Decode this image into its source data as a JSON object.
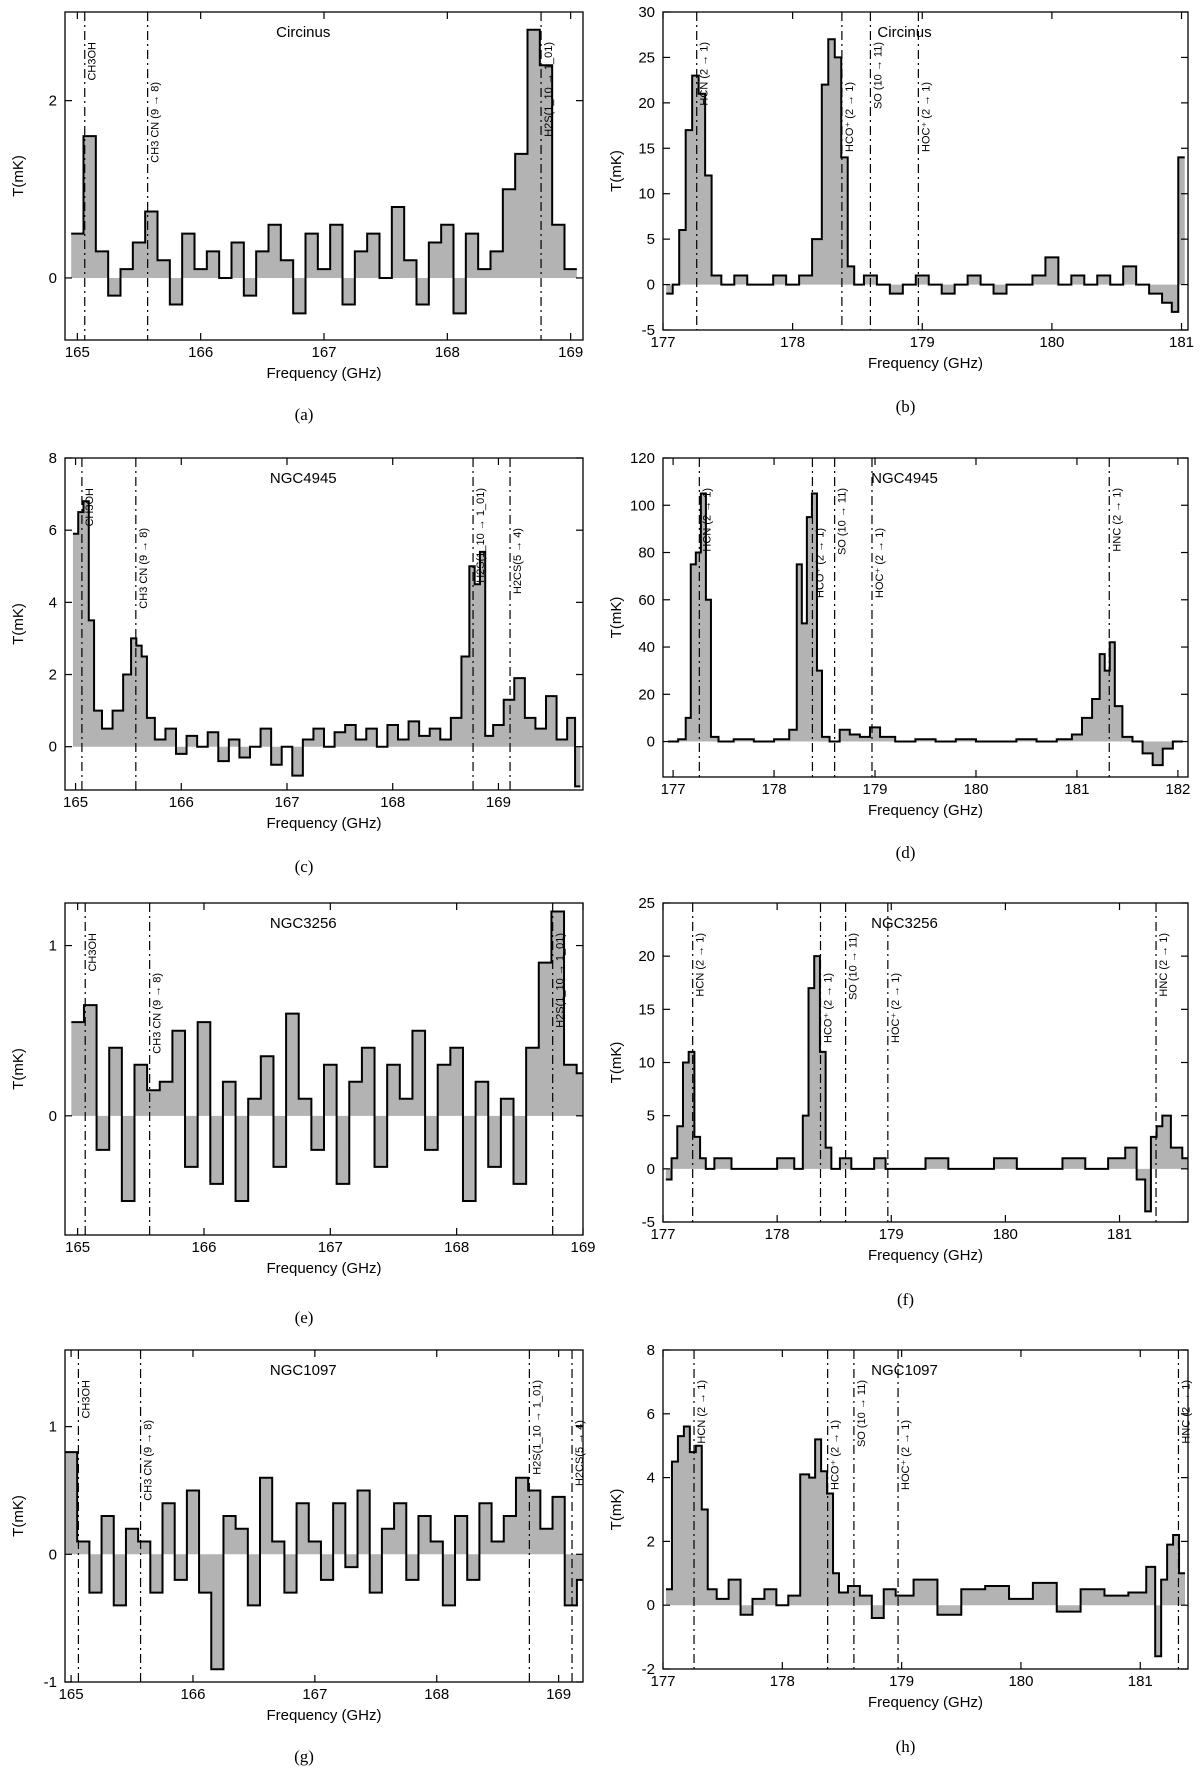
{
  "chart_data": [
    {
      "panel": "(a)",
      "source": "Circinus",
      "type": "line",
      "xlabel": "Frequency (GHz)",
      "ylabel": "T(mK)",
      "xlim": [
        164.9,
        169.1
      ],
      "ylim": [
        -0.7,
        3.0
      ],
      "xticks": [
        165,
        166,
        167,
        168,
        169
      ],
      "yticks": [
        0,
        2
      ],
      "lines": [
        {
          "label": "CH3OH",
          "freq": 165.06
        },
        {
          "label": "CH3 CN (9 → 8)",
          "freq": 165.57
        },
        {
          "label": "H2S(1_10 → 1_01)",
          "freq": 168.76
        }
      ],
      "series": [
        {
          "x": [
            165.0,
            165.1,
            165.2,
            165.3,
            165.4,
            165.5,
            165.6,
            165.7,
            165.8,
            165.9,
            166.0,
            166.1,
            166.2,
            166.3,
            166.4,
            166.5,
            166.6,
            166.7,
            166.8,
            166.9,
            167.0,
            167.1,
            167.2,
            167.3,
            167.4,
            167.5,
            167.6,
            167.7,
            167.8,
            167.9,
            168.0,
            168.1,
            168.2,
            168.3,
            168.4,
            168.5,
            168.6,
            168.7,
            168.8,
            168.9,
            169.0
          ],
          "values": [
            0.5,
            1.6,
            0.3,
            -0.2,
            0.1,
            0.4,
            0.75,
            0.2,
            -0.3,
            0.5,
            0.1,
            0.3,
            0.0,
            0.4,
            -0.2,
            0.3,
            0.6,
            0.2,
            -0.4,
            0.5,
            0.1,
            0.6,
            -0.3,
            0.3,
            0.5,
            0.0,
            0.8,
            0.2,
            -0.3,
            0.4,
            0.6,
            -0.4,
            0.5,
            0.1,
            0.3,
            1.0,
            1.4,
            2.8,
            2.4,
            0.6,
            0.1
          ]
        }
      ]
    },
    {
      "panel": "(b)",
      "source": "Circinus",
      "type": "line",
      "xlabel": "Frequency (GHz)",
      "ylabel": "T(mK)",
      "xlim": [
        177.0,
        181.05
      ],
      "ylim": [
        -5,
        30
      ],
      "xticks": [
        177,
        178,
        179,
        180,
        181
      ],
      "yticks": [
        -5,
        0,
        5,
        10,
        15,
        20,
        25,
        30
      ],
      "lines": [
        {
          "label": "HCN (2 → 1)",
          "freq": 177.26
        },
        {
          "label": "HCO⁺ (2 → 1)",
          "freq": 178.38
        },
        {
          "label": "SO (10 → 11)",
          "freq": 178.6
        },
        {
          "label": "HOC⁺ (2 → 1)",
          "freq": 178.97
        }
      ],
      "series": [
        {
          "x": [
            177.05,
            177.1,
            177.15,
            177.2,
            177.25,
            177.3,
            177.35,
            177.4,
            177.5,
            177.6,
            177.7,
            177.8,
            177.9,
            178.0,
            178.1,
            178.2,
            178.25,
            178.3,
            178.35,
            178.4,
            178.45,
            178.5,
            178.6,
            178.7,
            178.8,
            178.9,
            179.0,
            179.1,
            179.2,
            179.3,
            179.4,
            179.5,
            179.6,
            179.7,
            179.8,
            179.9,
            180.0,
            180.1,
            180.2,
            180.3,
            180.4,
            180.5,
            180.6,
            180.7,
            180.8,
            180.9,
            180.95,
            181.0
          ],
          "values": [
            -1,
            0,
            6,
            17,
            23,
            21,
            12,
            1,
            0,
            1,
            0,
            0,
            1,
            0,
            1,
            5,
            22,
            27,
            25,
            14,
            2,
            0,
            1,
            0,
            -1,
            0,
            1,
            0,
            -1,
            0,
            1,
            0,
            -1,
            0,
            0,
            1,
            3,
            0,
            1,
            0,
            1,
            0,
            2,
            0,
            -1,
            -2,
            -3,
            14
          ]
        }
      ]
    },
    {
      "panel": "(c)",
      "source": "NGC4945",
      "type": "line",
      "xlabel": "Frequency (GHz)",
      "ylabel": "T(mK)",
      "xlim": [
        164.9,
        169.8
      ],
      "ylim": [
        -1.2,
        8
      ],
      "xticks": [
        165,
        166,
        167,
        168,
        169
      ],
      "yticks": [
        0,
        2,
        4,
        6,
        8
      ],
      "lines": [
        {
          "label": "CH3OH",
          "freq": 165.06
        },
        {
          "label": "CH3 CN (9 → 8)",
          "freq": 165.57
        },
        {
          "label": "H2S(1_10 → 1_01)",
          "freq": 168.76
        },
        {
          "label": "H2CS(5 → 4)",
          "freq": 169.11
        }
      ],
      "series": [
        {
          "x": [
            165.0,
            165.05,
            165.1,
            165.15,
            165.2,
            165.3,
            165.4,
            165.5,
            165.55,
            165.6,
            165.65,
            165.7,
            165.8,
            165.9,
            166.0,
            166.1,
            166.2,
            166.3,
            166.4,
            166.5,
            166.6,
            166.7,
            166.8,
            166.9,
            167.0,
            167.1,
            167.2,
            167.3,
            167.4,
            167.5,
            167.6,
            167.7,
            167.8,
            167.9,
            168.0,
            168.1,
            168.2,
            168.3,
            168.4,
            168.5,
            168.6,
            168.7,
            168.75,
            168.8,
            168.85,
            168.9,
            169.0,
            169.1,
            169.2,
            169.3,
            169.4,
            169.5,
            169.6,
            169.7,
            169.75
          ],
          "values": [
            5.9,
            6.5,
            6.8,
            3.5,
            1.0,
            0.5,
            1.0,
            2.0,
            3.0,
            2.8,
            2.5,
            0.8,
            0.2,
            0.5,
            -0.2,
            0.3,
            0.0,
            0.4,
            -0.4,
            0.2,
            -0.3,
            0.0,
            0.5,
            -0.5,
            0.0,
            -0.8,
            0.2,
            0.5,
            0.0,
            0.4,
            0.6,
            0.2,
            0.5,
            0.0,
            0.6,
            0.2,
            0.7,
            0.3,
            0.5,
            0.2,
            0.8,
            2.5,
            5.0,
            4.5,
            5.4,
            0.3,
            0.6,
            1.3,
            1.9,
            0.8,
            0.5,
            1.4,
            0.2,
            0.8,
            -1.1
          ]
        }
      ]
    },
    {
      "panel": "(d)",
      "source": "NGC4945",
      "type": "line",
      "xlabel": "Frequency (GHz)",
      "ylabel": "T(mK)",
      "xlim": [
        176.9,
        182.1
      ],
      "ylim": [
        -15,
        120
      ],
      "xticks": [
        177,
        178,
        179,
        180,
        181,
        182
      ],
      "yticks": [
        0,
        20,
        40,
        60,
        80,
        100,
        120
      ],
      "lines": [
        {
          "label": "HCN (2 → 1)",
          "freq": 177.26
        },
        {
          "label": "HCO⁺ (2 → 1)",
          "freq": 178.38
        },
        {
          "label": "SO (10 → 11)",
          "freq": 178.6
        },
        {
          "label": "HOC⁺ (2 → 1)",
          "freq": 178.97
        },
        {
          "label": "HNC (2 → 1)",
          "freq": 181.32
        }
      ],
      "series": [
        {
          "x": [
            177.0,
            177.1,
            177.15,
            177.2,
            177.25,
            177.3,
            177.35,
            177.4,
            177.5,
            177.7,
            177.9,
            178.1,
            178.2,
            178.25,
            178.3,
            178.35,
            178.4,
            178.45,
            178.5,
            178.6,
            178.7,
            178.8,
            178.9,
            179.0,
            179.1,
            179.3,
            179.5,
            179.7,
            179.9,
            180.1,
            180.3,
            180.5,
            180.7,
            180.9,
            181.0,
            181.1,
            181.2,
            181.25,
            181.3,
            181.35,
            181.4,
            181.5,
            181.6,
            181.7,
            181.8,
            181.9,
            182.0
          ],
          "values": [
            0,
            1,
            10,
            75,
            80,
            105,
            60,
            2,
            0,
            1,
            0,
            1,
            5,
            75,
            50,
            95,
            105,
            30,
            2,
            0,
            5,
            3,
            2,
            6,
            2,
            0,
            1,
            0,
            1,
            0,
            0,
            1,
            0,
            1,
            3,
            10,
            18,
            37,
            30,
            42,
            15,
            2,
            0,
            -5,
            -10,
            -3,
            0
          ]
        }
      ]
    },
    {
      "panel": "(e)",
      "source": "NGC3256",
      "type": "line",
      "xlabel": "Frequency (GHz)",
      "ylabel": "T(mK)",
      "xlim": [
        164.9,
        169.0
      ],
      "ylim": [
        -0.7,
        1.25
      ],
      "xticks": [
        165,
        166,
        167,
        168,
        169
      ],
      "yticks": [
        0,
        1
      ],
      "lines": [
        {
          "label": "CH3OH",
          "freq": 165.06
        },
        {
          "label": "CH3 CN (9 → 8)",
          "freq": 165.57
        },
        {
          "label": "H2S(1_10 → 1_01)",
          "freq": 168.76
        }
      ],
      "series": [
        {
          "x": [
            165.0,
            165.1,
            165.2,
            165.3,
            165.4,
            165.5,
            165.6,
            165.7,
            165.8,
            165.9,
            166.0,
            166.1,
            166.2,
            166.3,
            166.4,
            166.5,
            166.6,
            166.7,
            166.8,
            166.9,
            167.0,
            167.1,
            167.2,
            167.3,
            167.4,
            167.5,
            167.6,
            167.7,
            167.8,
            167.9,
            168.0,
            168.1,
            168.2,
            168.3,
            168.4,
            168.5,
            168.6,
            168.7,
            168.8,
            168.9,
            169.0
          ],
          "values": [
            0.55,
            0.65,
            -0.2,
            0.4,
            -0.5,
            0.3,
            0.15,
            0.2,
            0.5,
            -0.3,
            0.55,
            -0.4,
            0.2,
            -0.5,
            0.1,
            0.35,
            -0.3,
            0.6,
            0.1,
            -0.2,
            0.3,
            -0.4,
            0.2,
            0.4,
            -0.3,
            0.3,
            0.1,
            0.5,
            -0.2,
            0.3,
            0.4,
            -0.5,
            0.2,
            -0.3,
            0.1,
            -0.4,
            0.4,
            0.9,
            1.2,
            0.3,
            0.25
          ]
        }
      ]
    },
    {
      "panel": "(f)",
      "source": "NGC3256",
      "type": "line",
      "xlabel": "Frequency (GHz)",
      "ylabel": "T(mK)",
      "xlim": [
        177.0,
        181.6
      ],
      "ylim": [
        -5,
        25
      ],
      "xticks": [
        177,
        178,
        179,
        180,
        181
      ],
      "yticks": [
        -5,
        0,
        5,
        10,
        15,
        20,
        25
      ],
      "lines": [
        {
          "label": "HCN (2 → 1)",
          "freq": 177.26
        },
        {
          "label": "HCO⁺ (2 → 1)",
          "freq": 178.38
        },
        {
          "label": "SO (10 → 11)",
          "freq": 178.6
        },
        {
          "label": "HOC⁺ (2 → 1)",
          "freq": 178.97
        },
        {
          "label": "HNC (2 → 1)",
          "freq": 181.32
        }
      ],
      "series": [
        {
          "x": [
            177.05,
            177.1,
            177.15,
            177.2,
            177.25,
            177.3,
            177.35,
            177.4,
            177.5,
            177.7,
            177.9,
            178.1,
            178.2,
            178.25,
            178.3,
            178.35,
            178.4,
            178.45,
            178.5,
            178.6,
            178.7,
            178.8,
            178.9,
            179.0,
            179.2,
            179.4,
            179.6,
            179.8,
            180.0,
            180.2,
            180.4,
            180.6,
            180.8,
            181.0,
            181.1,
            181.2,
            181.25,
            181.3,
            181.35,
            181.4,
            181.5,
            181.6
          ],
          "values": [
            -1,
            1,
            4,
            10,
            11,
            3,
            1,
            0,
            1,
            0,
            0,
            1,
            0,
            5,
            17,
            20,
            11,
            2,
            0,
            1,
            0,
            0,
            1,
            0,
            0,
            1,
            0,
            0,
            1,
            0,
            0,
            1,
            0,
            1,
            2,
            -1,
            -4,
            3,
            4,
            5,
            2,
            1
          ]
        }
      ]
    },
    {
      "panel": "(g)",
      "source": "NGC1097",
      "type": "line",
      "xlabel": "Frequency (GHz)",
      "ylabel": "T(mK)",
      "xlim": [
        164.95,
        169.2
      ],
      "ylim": [
        -1.0,
        1.6
      ],
      "xticks": [
        165,
        166,
        167,
        168,
        169
      ],
      "yticks": [
        -1,
        0,
        1
      ],
      "lines": [
        {
          "label": "CH3OH",
          "freq": 165.06
        },
        {
          "label": "CH3 CN (9 → 8)",
          "freq": 165.57
        },
        {
          "label": "H2S(1_10 → 1_01)",
          "freq": 168.76
        },
        {
          "label": "H2CS(5 → 4)",
          "freq": 169.11
        }
      ],
      "series": [
        {
          "x": [
            165.0,
            165.1,
            165.2,
            165.3,
            165.4,
            165.5,
            165.6,
            165.7,
            165.8,
            165.9,
            166.0,
            166.1,
            166.2,
            166.3,
            166.4,
            166.5,
            166.6,
            166.7,
            166.8,
            166.9,
            167.0,
            167.1,
            167.2,
            167.3,
            167.4,
            167.5,
            167.6,
            167.7,
            167.8,
            167.9,
            168.0,
            168.1,
            168.2,
            168.3,
            168.4,
            168.5,
            168.6,
            168.7,
            168.8,
            168.9,
            169.0,
            169.1,
            169.2
          ],
          "values": [
            0.8,
            0.1,
            -0.3,
            0.3,
            -0.4,
            0.2,
            0.1,
            -0.3,
            0.4,
            -0.2,
            0.5,
            -0.3,
            -0.9,
            0.3,
            0.2,
            -0.4,
            0.6,
            0.1,
            -0.3,
            0.4,
            0.1,
            -0.2,
            0.4,
            -0.1,
            0.5,
            -0.3,
            0.2,
            0.4,
            -0.2,
            0.3,
            0.1,
            -0.4,
            0.3,
            -0.2,
            0.4,
            0.1,
            0.3,
            0.6,
            0.5,
            0.2,
            0.45,
            -0.4,
            -0.2
          ]
        }
      ]
    },
    {
      "panel": "(h)",
      "source": "NGC1097",
      "type": "line",
      "xlabel": "Frequency (GHz)",
      "ylabel": "T(mK)",
      "xlim": [
        177.0,
        181.4
      ],
      "ylim": [
        -2,
        8
      ],
      "xticks": [
        177,
        178,
        179,
        180,
        181
      ],
      "yticks": [
        -2,
        0,
        2,
        4,
        6,
        8
      ],
      "lines": [
        {
          "label": "HCN (2 → 1)",
          "freq": 177.26
        },
        {
          "label": "HCO⁺ (2 → 1)",
          "freq": 178.38
        },
        {
          "label": "SO (10 → 11)",
          "freq": 178.6
        },
        {
          "label": "HOC⁺ (2 → 1)",
          "freq": 178.97
        },
        {
          "label": "HNC (2 → 1)",
          "freq": 181.32
        }
      ],
      "series": [
        {
          "x": [
            177.05,
            177.1,
            177.15,
            177.2,
            177.25,
            177.3,
            177.35,
            177.4,
            177.5,
            177.6,
            177.7,
            177.8,
            177.9,
            178.0,
            178.1,
            178.2,
            178.25,
            178.3,
            178.35,
            178.4,
            178.45,
            178.5,
            178.6,
            178.7,
            178.8,
            178.9,
            179.0,
            179.2,
            179.4,
            179.6,
            179.8,
            180.0,
            180.2,
            180.4,
            180.6,
            180.8,
            181.0,
            181.1,
            181.15,
            181.2,
            181.25,
            181.3,
            181.35
          ],
          "values": [
            0.5,
            4.5,
            5.3,
            5.6,
            4.8,
            5.0,
            3.0,
            0.5,
            0.2,
            0.8,
            -0.3,
            0.2,
            0.5,
            0.0,
            0.3,
            4.1,
            4.0,
            5.2,
            4.2,
            3.5,
            1.0,
            0.4,
            0.6,
            0.3,
            -0.4,
            0.5,
            0.3,
            0.8,
            -0.3,
            0.5,
            0.6,
            0.2,
            0.7,
            -0.2,
            0.5,
            0.3,
            0.4,
            1.2,
            -1.6,
            0.8,
            1.9,
            2.2,
            1.0
          ]
        }
      ]
    }
  ]
}
